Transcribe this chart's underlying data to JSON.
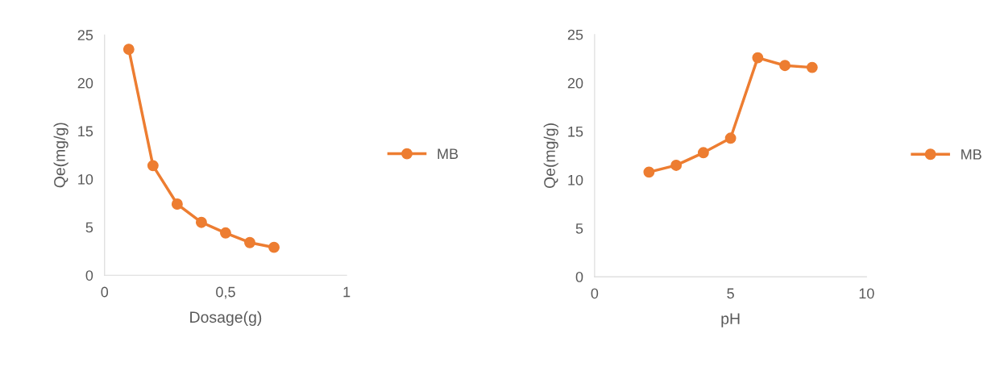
{
  "chart_data": [
    {
      "type": "line",
      "xlabel": "Dosage(g)",
      "ylabel": "Qe(mg/g)",
      "x": [
        0.1,
        0.2,
        0.3,
        0.4,
        0.5,
        0.6,
        0.7
      ],
      "series": [
        {
          "name": "MB",
          "color": "#ed7d31",
          "values": [
            23.5,
            11.4,
            7.4,
            5.5,
            4.4,
            3.4,
            2.9
          ]
        }
      ],
      "xlim": [
        0,
        1
      ],
      "xticks": [
        0,
        {
          "value": 0.5,
          "label": "0,5"
        },
        1
      ],
      "ylim": [
        0,
        25
      ],
      "yticks": [
        0,
        5,
        10,
        15,
        20,
        25
      ],
      "marker": "circle",
      "legend": "right",
      "grid": false
    },
    {
      "type": "line",
      "xlabel": "pH",
      "ylabel": "Qe(mg/g)",
      "x": [
        2,
        3,
        4,
        5,
        6,
        7,
        8
      ],
      "series": [
        {
          "name": "MB",
          "color": "#ed7d31",
          "values": [
            10.8,
            11.5,
            12.8,
            14.3,
            22.6,
            21.8,
            21.6
          ]
        }
      ],
      "xlim": [
        0,
        10
      ],
      "xticks": [
        0,
        5,
        10
      ],
      "ylim": [
        0,
        25
      ],
      "yticks": [
        0,
        5,
        10,
        15,
        20,
        25
      ],
      "marker": "circle",
      "legend": "right",
      "grid": false
    }
  ]
}
